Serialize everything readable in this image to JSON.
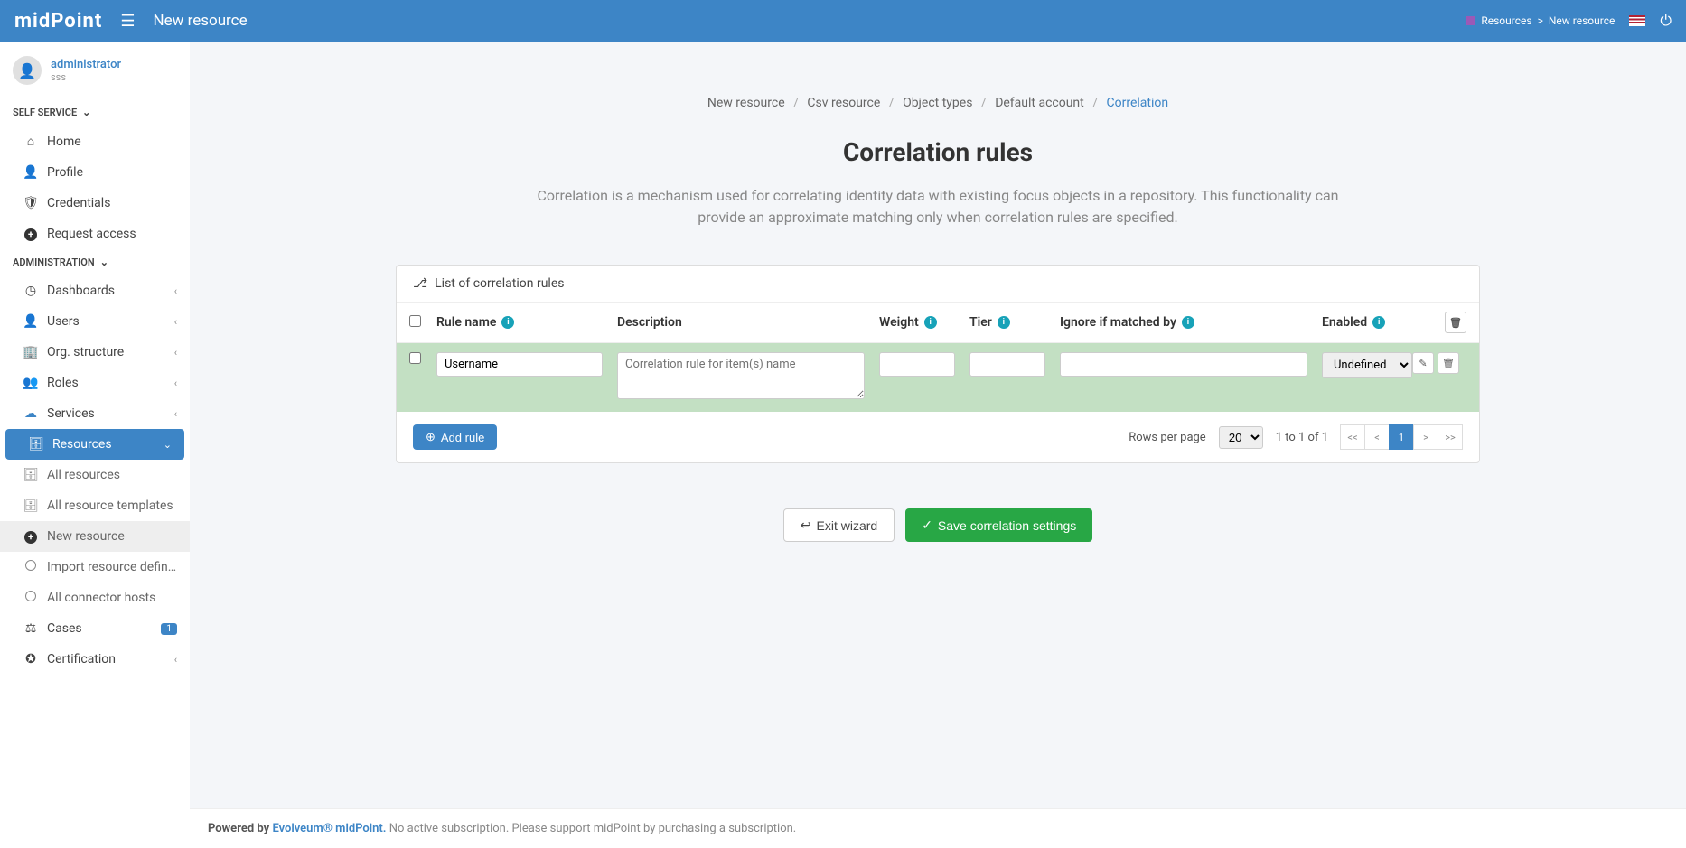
{
  "header": {
    "logo": "midPoint",
    "title": "New resource",
    "breadcrumb_top": [
      "Resources",
      "New resource"
    ]
  },
  "user": {
    "name": "administrator",
    "sub": "sss"
  },
  "sidebar": {
    "section1": "SELF SERVICE",
    "home": "Home",
    "profile": "Profile",
    "credentials": "Credentials",
    "request_access": "Request access",
    "section2": "ADMINISTRATION",
    "dashboards": "Dashboards",
    "users": "Users",
    "org": "Org. structure",
    "roles": "Roles",
    "services": "Services",
    "resources": "Resources",
    "all_resources": "All resources",
    "all_templates": "All resource templates",
    "new_resource": "New resource",
    "import_def": "Import resource definit…",
    "connector_hosts": "All connector hosts",
    "cases": "Cases",
    "cases_badge": "1",
    "certification": "Certification"
  },
  "wizard": {
    "breadcrumb": [
      "New resource",
      "Csv resource",
      "Object types",
      "Default account",
      "Correlation"
    ],
    "title": "Correlation rules",
    "description": "Correlation is a mechanism used for correlating identity data with existing focus objects in a repository. This functionality can provide an approximate matching only when correlation rules are specified."
  },
  "card": {
    "header": "List of correlation rules",
    "columns": {
      "name": "Rule name",
      "desc": "Description",
      "weight": "Weight",
      "tier": "Tier",
      "ignore": "Ignore if matched by",
      "enabled": "Enabled"
    },
    "row": {
      "name": "Username",
      "desc_placeholder": "Correlation rule for item(s) name",
      "enabled": "Undefined"
    },
    "add_rule": "Add rule",
    "rows_per_page_label": "Rows per page",
    "rows_per_page_value": "20",
    "page_info": "1 to 1 of 1",
    "pag_current": "1"
  },
  "actions": {
    "exit": "Exit wizard",
    "save": "Save correlation settings"
  },
  "footer": {
    "powered": "Powered by ",
    "evolveum": "Evolveum® midPoint.",
    "sub": "  No active subscription. Please support midPoint by purchasing a subscription."
  }
}
